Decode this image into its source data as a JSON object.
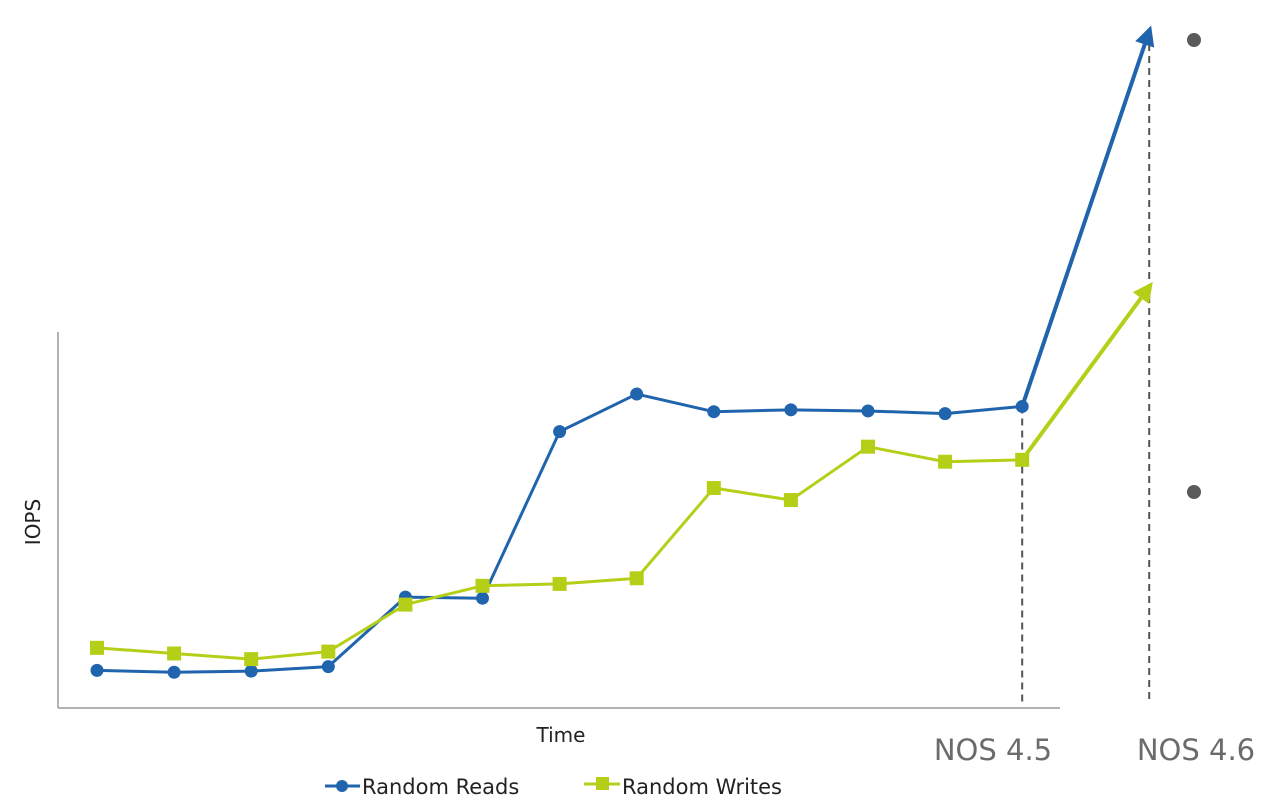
{
  "chart_data": {
    "type": "line",
    "title": "",
    "xlabel": "Time",
    "ylabel": "IOPS",
    "x": [
      1,
      2,
      3,
      4,
      5,
      6,
      7,
      8,
      9,
      10,
      11,
      12,
      13
    ],
    "ylim": [
      0,
      100
    ],
    "grid": false,
    "legend": "bottom-center",
    "series": [
      {
        "name": "Random Reads",
        "color": "#1f64ad",
        "marker": "circle",
        "values": [
          10,
          9.5,
          9.8,
          11,
          29.5,
          29.2,
          73.5,
          83.5,
          78.8,
          79.3,
          79,
          78.3,
          80.2
        ],
        "projection": {
          "from_x": 13,
          "to_value": 180
        }
      },
      {
        "name": "Random Writes",
        "color": "#b5cf18",
        "marker": "square",
        "values": [
          16,
          14.5,
          13,
          15,
          27.5,
          32.5,
          33,
          34.5,
          58.5,
          55.3,
          69.5,
          65.5,
          66
        ],
        "projection": {
          "from_x": 13,
          "to_value": 112
        }
      }
    ],
    "annotations": [
      {
        "label": "NOS 4.5",
        "at": "last_point"
      },
      {
        "label": "NOS 4.6",
        "at": "projection_end"
      }
    ]
  },
  "bullets": [
    "",
    ""
  ]
}
